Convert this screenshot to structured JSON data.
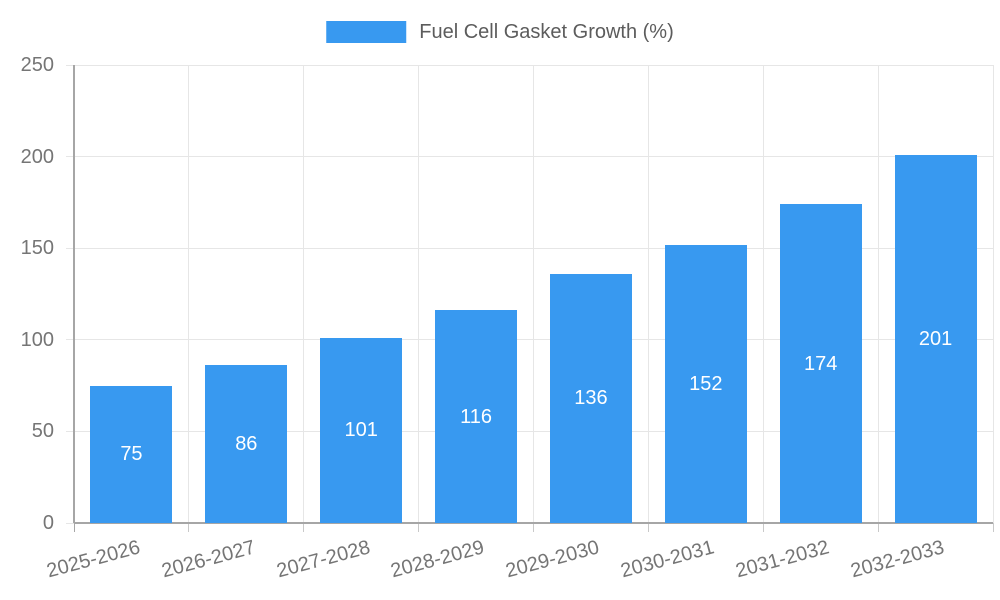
{
  "chart_data": {
    "type": "bar",
    "title": "Fuel Cell Gasket Growth (%)",
    "categories": [
      "2025-2026",
      "2026-2027",
      "2027-2028",
      "2028-2029",
      "2029-2030",
      "2030-2031",
      "2031-2032",
      "2032-2033"
    ],
    "series": [
      {
        "name": "Fuel Cell Gasket Growth (%)",
        "values": [
          75,
          86,
          101,
          116,
          136,
          152,
          174,
          201
        ]
      }
    ],
    "xlabel": "",
    "ylabel": "",
    "ylim": [
      0,
      250
    ],
    "yticks": [
      0,
      50,
      100,
      150,
      200,
      250
    ],
    "grid": true,
    "legend_position": "top-center",
    "value_labels_position": "inside-center",
    "colors": {
      "bar": "#3899F0",
      "value_label": "#FFFFFF",
      "grid": "#E6E6E6",
      "axis": "#A6A6A6",
      "bottom_tick": "#C9C9C9",
      "tick_label": "#757575",
      "legend_text": "#5C5C5C",
      "background": "#FFFFFF"
    }
  }
}
